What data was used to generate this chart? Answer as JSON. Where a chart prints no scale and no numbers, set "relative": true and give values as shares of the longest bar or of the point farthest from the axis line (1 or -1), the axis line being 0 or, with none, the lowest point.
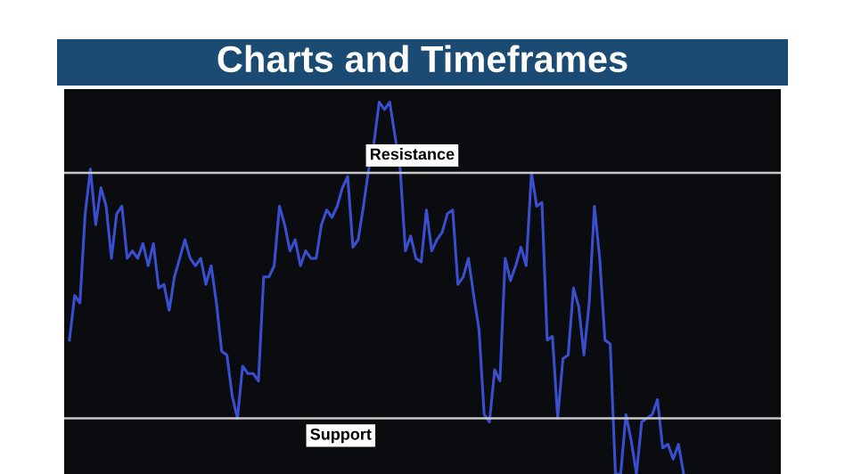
{
  "chart_data": {
    "type": "line",
    "title": "Charts and Timeframes",
    "relative": true,
    "categories": [
      null,
      null,
      null,
      null,
      null,
      null,
      null,
      null,
      null,
      null,
      null,
      null,
      null,
      null,
      null,
      null,
      null,
      null,
      null,
      null,
      null,
      null,
      null,
      null,
      null,
      null,
      null,
      null,
      null,
      null,
      null,
      null,
      null,
      null,
      null,
      null,
      null,
      null,
      null,
      null,
      null,
      null,
      null,
      null,
      null,
      null,
      null,
      null,
      null,
      null,
      null,
      null,
      null,
      null,
      null,
      null,
      null,
      null,
      null,
      null,
      null,
      null,
      null,
      null,
      null,
      null,
      null,
      null,
      null,
      null,
      null,
      null,
      null,
      null,
      null,
      null,
      null,
      null,
      null,
      null,
      null,
      null,
      null,
      null,
      null,
      null,
      null,
      null,
      null,
      null,
      null,
      null,
      null,
      null,
      null,
      null,
      null,
      null,
      null,
      null,
      null,
      null,
      null,
      null,
      null,
      null,
      null,
      null,
      null,
      null,
      null,
      null,
      null,
      null,
      null,
      null,
      null,
      null,
      null,
      null,
      null,
      null,
      null,
      null,
      null,
      null,
      null,
      null,
      null,
      null,
      null,
      null,
      null,
      null,
      null,
      null
    ],
    "series": [
      {
        "color": "#3a4fd0",
        "values": [
          0.36,
          0.48,
          0.46,
          0.7,
          0.82,
          0.67,
          0.77,
          0.72,
          0.58,
          0.7,
          0.72,
          0.58,
          0.6,
          0.58,
          0.62,
          0.56,
          0.62,
          0.5,
          0.51,
          0.44,
          0.53,
          0.58,
          0.63,
          0.58,
          0.56,
          0.58,
          0.51,
          0.56,
          0.46,
          0.33,
          0.32,
          0.21,
          0.15,
          0.29,
          0.27,
          0.27,
          0.25,
          0.53,
          0.53,
          0.56,
          0.72,
          0.67,
          0.6,
          0.63,
          0.56,
          0.6,
          0.58,
          0.58,
          0.67,
          0.71,
          0.69,
          0.72,
          0.77,
          0.8,
          0.61,
          0.63,
          0.72,
          0.82,
          0.89,
          1.0,
          0.98,
          1.0,
          0.91,
          0.82,
          0.6,
          0.64,
          0.58,
          0.57,
          0.71,
          0.6,
          0.63,
          0.65,
          0.7,
          0.71,
          0.51,
          0.53,
          0.58,
          0.48,
          0.39,
          0.16,
          0.14,
          0.28,
          0.25,
          0.58,
          0.52,
          0.56,
          0.61,
          0.56,
          0.81,
          0.72,
          0.73,
          0.36,
          0.37,
          0.15,
          0.31,
          0.32,
          0.5,
          0.45,
          0.32,
          0.46,
          0.72,
          0.58,
          0.36,
          0.35,
          0,
          0,
          0.16,
          0.09,
          0.0,
          0.14,
          0.15,
          0.16,
          0.2,
          0.07,
          0.08,
          0.04,
          0.08,
          0,
          null,
          null,
          null,
          null,
          null,
          null,
          null,
          null,
          null,
          null,
          null,
          null,
          null,
          null,
          null,
          null,
          null,
          null
        ]
      }
    ],
    "ref_lines": [
      {
        "axis": "y",
        "value": 0.81,
        "label": "Resistance",
        "color": "#c8c8c8"
      },
      {
        "axis": "y",
        "value": 0.15,
        "label": "Support",
        "color": "#c8c8c8"
      }
    ],
    "legend": false
  }
}
